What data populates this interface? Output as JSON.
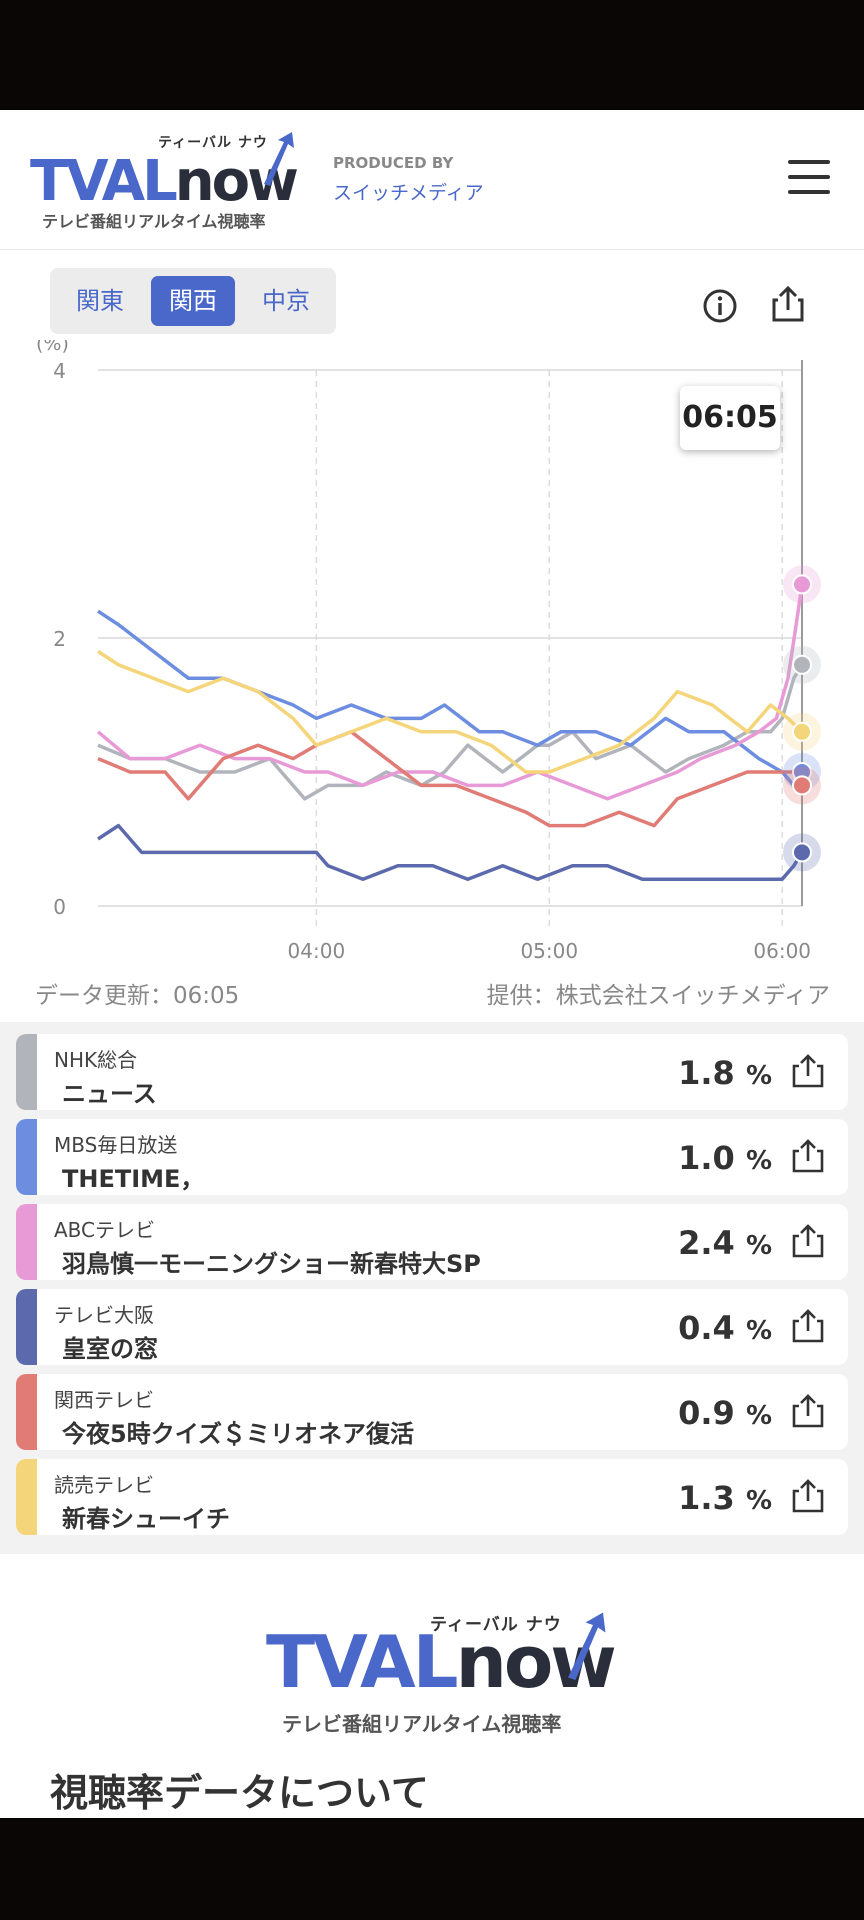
{
  "header": {
    "logo_text": "TVAL",
    "logo_now": "now",
    "logo_ruby": "ティーバル ナウ",
    "logo_subtitle": "テレビ番組リアルタイム視聴率",
    "produced_by": "PRODUCED BY",
    "producer": "スイッチメディア"
  },
  "regions": [
    {
      "label": "関東",
      "active": false
    },
    {
      "label": "関西",
      "active": true
    },
    {
      "label": "中京",
      "active": false
    }
  ],
  "chart_data": {
    "type": "line",
    "ylabel": "(%)",
    "ylim": [
      0,
      4
    ],
    "yticks": [
      "0",
      "2",
      "4"
    ],
    "xticks": [
      {
        "label": "04:00",
        "t": 3.0
      },
      {
        "label": "05:00",
        "t": 5.0
      },
      {
        "label": "06:00",
        "t": 7.0
      }
    ],
    "xlim": [
      1.125,
      7.17
    ],
    "cursor_time": "06:05",
    "cursor_t": 7.17,
    "grid": true,
    "series": [
      {
        "name": "NHK総合",
        "color": "#b1b5bb",
        "x": [
          1.125,
          1.4,
          1.7,
          2.0,
          2.3,
          2.6,
          2.9,
          3.1,
          3.4,
          3.6,
          3.9,
          4.1,
          4.3,
          4.6,
          4.9,
          5.0,
          5.2,
          5.4,
          5.7,
          6.0,
          6.2,
          6.5,
          6.7,
          6.9,
          7.0,
          7.1,
          7.17
        ],
        "y": [
          1.2,
          1.1,
          1.1,
          1.0,
          1.0,
          1.1,
          0.8,
          0.9,
          0.9,
          1.0,
          0.9,
          1.0,
          1.2,
          1.0,
          1.2,
          1.2,
          1.3,
          1.1,
          1.2,
          1.0,
          1.1,
          1.2,
          1.3,
          1.3,
          1.4,
          1.7,
          1.8
        ]
      },
      {
        "name": "MBS毎日放送",
        "color": "#6d8de0",
        "x": [
          1.125,
          1.3,
          1.6,
          1.9,
          2.2,
          2.5,
          2.8,
          3.0,
          3.3,
          3.6,
          3.9,
          4.1,
          4.4,
          4.6,
          4.9,
          5.1,
          5.4,
          5.7,
          6.0,
          6.2,
          6.5,
          6.8,
          7.0,
          7.1,
          7.17
        ],
        "y": [
          2.2,
          2.1,
          1.9,
          1.7,
          1.7,
          1.6,
          1.5,
          1.4,
          1.5,
          1.4,
          1.4,
          1.5,
          1.3,
          1.3,
          1.2,
          1.3,
          1.3,
          1.2,
          1.4,
          1.3,
          1.3,
          1.1,
          1.0,
          0.9,
          1.0
        ]
      },
      {
        "name": "ABCテレビ",
        "color": "#e79ad6",
        "x": [
          1.125,
          1.4,
          1.7,
          2.0,
          2.3,
          2.6,
          2.9,
          3.1,
          3.4,
          3.7,
          4.0,
          4.3,
          4.6,
          4.9,
          5.2,
          5.5,
          5.8,
          6.1,
          6.3,
          6.6,
          6.8,
          6.95,
          7.05,
          7.12,
          7.17
        ],
        "y": [
          1.3,
          1.1,
          1.1,
          1.2,
          1.1,
          1.1,
          1.0,
          1.0,
          0.9,
          1.0,
          1.0,
          0.9,
          0.9,
          1.0,
          0.9,
          0.8,
          0.9,
          1.0,
          1.1,
          1.2,
          1.3,
          1.4,
          1.7,
          2.1,
          2.4
        ]
      },
      {
        "name": "テレビ大阪",
        "color": "#5c6aad",
        "x": [
          1.125,
          1.3,
          1.5,
          1.8,
          2.1,
          2.4,
          2.7,
          3.0,
          3.1,
          3.4,
          3.7,
          4.0,
          4.3,
          4.6,
          4.9,
          5.2,
          5.5,
          5.8,
          6.1,
          6.4,
          6.7,
          7.0,
          7.1,
          7.17
        ],
        "y": [
          0.5,
          0.6,
          0.4,
          0.4,
          0.4,
          0.4,
          0.4,
          0.4,
          0.3,
          0.2,
          0.3,
          0.3,
          0.2,
          0.3,
          0.2,
          0.3,
          0.3,
          0.2,
          0.2,
          0.2,
          0.2,
          0.2,
          0.3,
          0.4
        ]
      },
      {
        "name": "関西テレビ",
        "color": "#e07b75",
        "x": [
          1.125,
          1.4,
          1.7,
          1.9,
          2.2,
          2.5,
          2.8,
          3.0,
          3.3,
          3.6,
          3.9,
          4.2,
          4.5,
          4.8,
          5.0,
          5.3,
          5.6,
          5.9,
          6.1,
          6.4,
          6.7,
          6.9,
          7.1,
          7.17
        ],
        "y": [
          1.1,
          1.0,
          1.0,
          0.8,
          1.1,
          1.2,
          1.1,
          1.2,
          1.3,
          1.1,
          0.9,
          0.9,
          0.8,
          0.7,
          0.6,
          0.6,
          0.7,
          0.6,
          0.8,
          0.9,
          1.0,
          1.0,
          1.0,
          0.9
        ]
      },
      {
        "name": "読売テレビ",
        "color": "#f5d57a",
        "x": [
          1.125,
          1.3,
          1.6,
          1.9,
          2.2,
          2.5,
          2.8,
          3.0,
          3.3,
          3.6,
          3.9,
          4.2,
          4.5,
          4.8,
          5.0,
          5.3,
          5.6,
          5.9,
          6.1,
          6.4,
          6.7,
          6.9,
          7.05,
          7.17
        ],
        "y": [
          1.9,
          1.8,
          1.7,
          1.6,
          1.7,
          1.6,
          1.4,
          1.2,
          1.3,
          1.4,
          1.3,
          1.3,
          1.2,
          1.0,
          1.0,
          1.1,
          1.2,
          1.4,
          1.6,
          1.5,
          1.3,
          1.5,
          1.4,
          1.3
        ]
      }
    ]
  },
  "chart_meta": {
    "update_text": "データ更新：06:05",
    "provider_text": "提供：株式会社スイッチメディア"
  },
  "programs": [
    {
      "channel": "NHK総合",
      "title": "ニュース",
      "rating": "1.8",
      "unit": "%",
      "color": "#b1b5bb"
    },
    {
      "channel": "MBS毎日放送",
      "title": "THETIME，",
      "rating": "1.0",
      "unit": "%",
      "color": "#6d8de0"
    },
    {
      "channel": "ABCテレビ",
      "title": "羽鳥慎一モーニングショー新春特大SP",
      "rating": "2.4",
      "unit": "%",
      "color": "#e79ad6"
    },
    {
      "channel": "テレビ大阪",
      "title": "皇室の窓",
      "rating": "0.4",
      "unit": "%",
      "color": "#5c6aad"
    },
    {
      "channel": "関西テレビ",
      "title": "今夜5時クイズ＄ミリオネア復活",
      "rating": "0.9",
      "unit": "%",
      "color": "#e07b75"
    },
    {
      "channel": "読売テレビ",
      "title": "新春シューイチ",
      "rating": "1.3",
      "unit": "%",
      "color": "#f5d57a"
    }
  ],
  "about_title": "視聴率データについて"
}
